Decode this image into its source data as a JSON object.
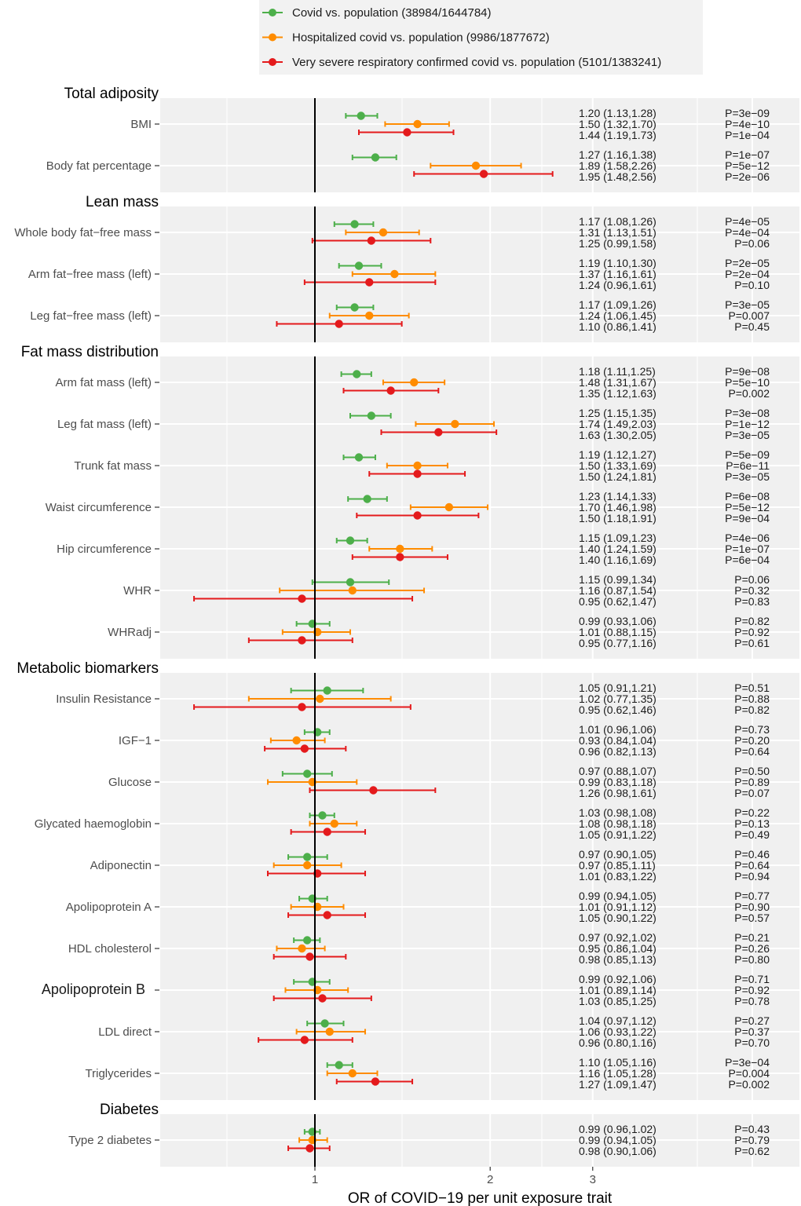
{
  "chart_data": {
    "type": "forest",
    "xlabel": "OR of COVID−19 per unit exposure trait",
    "xscale": "log",
    "xlim": [
      0.54,
      6.8
    ],
    "xticks": [
      1,
      2,
      3
    ],
    "reference_line": 1,
    "grid": true,
    "legend_position": "top",
    "series": [
      {
        "name": "Covid vs. population (38984/1644784)",
        "color": "#4daf4a"
      },
      {
        "name": "Hospitalized covid vs. population (9986/1877672)",
        "color": "#ff8c00"
      },
      {
        "name": "Very severe respiratory confirmed covid vs. population (5101/1383241)",
        "color": "#e41a1c"
      }
    ],
    "sections": [
      {
        "title": "Total adiposity",
        "traits": [
          {
            "name": "BMI",
            "est": [
              [
                1.2,
                1.13,
                1.28,
                "P=3e−09"
              ],
              [
                1.5,
                1.32,
                1.7,
                "P=4e−10"
              ],
              [
                1.44,
                1.19,
                1.73,
                "P=1e−04"
              ]
            ]
          },
          {
            "name": "Body fat percentage",
            "est": [
              [
                1.27,
                1.16,
                1.38,
                "P=1e−07"
              ],
              [
                1.89,
                1.58,
                2.26,
                "P=5e−12"
              ],
              [
                1.95,
                1.48,
                2.56,
                "P=2e−06"
              ]
            ]
          }
        ]
      },
      {
        "title": "Lean mass",
        "traits": [
          {
            "name": "Whole body fat−free mass",
            "est": [
              [
                1.17,
                1.08,
                1.26,
                "P=4e−05"
              ],
              [
                1.31,
                1.13,
                1.51,
                "P=4e−04"
              ],
              [
                1.25,
                0.99,
                1.58,
                "P=0.06"
              ]
            ]
          },
          {
            "name": "Arm fat−free mass (left)",
            "est": [
              [
                1.19,
                1.1,
                1.3,
                "P=2e−05"
              ],
              [
                1.37,
                1.16,
                1.61,
                "P=2e−04"
              ],
              [
                1.24,
                0.96,
                1.61,
                "P=0.10"
              ]
            ]
          },
          {
            "name": "Leg fat−free mass (left)",
            "est": [
              [
                1.17,
                1.09,
                1.26,
                "P=3e−05"
              ],
              [
                1.24,
                1.06,
                1.45,
                "P=0.007"
              ],
              [
                1.1,
                0.86,
                1.41,
                "P=0.45"
              ]
            ]
          }
        ]
      },
      {
        "title": "Fat mass distribution",
        "traits": [
          {
            "name": "Arm fat mass (left)",
            "est": [
              [
                1.18,
                1.11,
                1.25,
                "P=9e−08"
              ],
              [
                1.48,
                1.31,
                1.67,
                "P=5e−10"
              ],
              [
                1.35,
                1.12,
                1.63,
                "P=0.002"
              ]
            ]
          },
          {
            "name": "Leg fat mass (left)",
            "est": [
              [
                1.25,
                1.15,
                1.35,
                "P=3e−08"
              ],
              [
                1.74,
                1.49,
                2.03,
                "P=1e−12"
              ],
              [
                1.63,
                1.3,
                2.05,
                "P=3e−05"
              ]
            ]
          },
          {
            "name": "Trunk fat mass",
            "est": [
              [
                1.19,
                1.12,
                1.27,
                "P=5e−09"
              ],
              [
                1.5,
                1.33,
                1.69,
                "P=6e−11"
              ],
              [
                1.5,
                1.24,
                1.81,
                "P=3e−05"
              ]
            ]
          },
          {
            "name": "Waist circumference",
            "est": [
              [
                1.23,
                1.14,
                1.33,
                "P=6e−08"
              ],
              [
                1.7,
                1.46,
                1.98,
                "P=5e−12"
              ],
              [
                1.5,
                1.18,
                1.91,
                "P=9e−04"
              ]
            ]
          },
          {
            "name": "Hip circumference",
            "est": [
              [
                1.15,
                1.09,
                1.23,
                "P=4e−06"
              ],
              [
                1.4,
                1.24,
                1.59,
                "P=1e−07"
              ],
              [
                1.4,
                1.16,
                1.69,
                "P=6e−04"
              ]
            ]
          },
          {
            "name": "WHR",
            "est": [
              [
                1.15,
                0.99,
                1.34,
                "P=0.06"
              ],
              [
                1.16,
                0.87,
                1.54,
                "P=0.32"
              ],
              [
                0.95,
                0.62,
                1.47,
                "P=0.83"
              ]
            ]
          },
          {
            "name": "WHRadj",
            "est": [
              [
                0.99,
                0.93,
                1.06,
                "P=0.82"
              ],
              [
                1.01,
                0.88,
                1.15,
                "P=0.92"
              ],
              [
                0.95,
                0.77,
                1.16,
                "P=0.61"
              ]
            ]
          }
        ]
      },
      {
        "title": "Metabolic biomarkers",
        "traits": [
          {
            "name": "Insulin Resistance",
            "est": [
              [
                1.05,
                0.91,
                1.21,
                "P=0.51"
              ],
              [
                1.02,
                0.77,
                1.35,
                "P=0.88"
              ],
              [
                0.95,
                0.62,
                1.46,
                "P=0.82"
              ]
            ]
          },
          {
            "name": "IGF−1",
            "est": [
              [
                1.01,
                0.96,
                1.06,
                "P=0.73"
              ],
              [
                0.93,
                0.84,
                1.04,
                "P=0.20"
              ],
              [
                0.96,
                0.82,
                1.13,
                "P=0.64"
              ]
            ]
          },
          {
            "name": "Glucose",
            "est": [
              [
                0.97,
                0.88,
                1.07,
                "P=0.50"
              ],
              [
                0.99,
                0.83,
                1.18,
                "P=0.89"
              ],
              [
                1.26,
                0.98,
                1.61,
                "P=0.07"
              ]
            ]
          },
          {
            "name": "Glycated haemoglobin",
            "est": [
              [
                1.03,
                0.98,
                1.08,
                "P=0.22"
              ],
              [
                1.08,
                0.98,
                1.18,
                "P=0.13"
              ],
              [
                1.05,
                0.91,
                1.22,
                "P=0.49"
              ]
            ]
          },
          {
            "name": "Adiponectin",
            "est": [
              [
                0.97,
                0.9,
                1.05,
                "P=0.46"
              ],
              [
                0.97,
                0.85,
                1.11,
                "P=0.64"
              ],
              [
                1.01,
                0.83,
                1.22,
                "P=0.94"
              ]
            ]
          },
          {
            "name": "Apolipoprotein A",
            "est": [
              [
                0.99,
                0.94,
                1.05,
                "P=0.77"
              ],
              [
                1.01,
                0.91,
                1.12,
                "P=0.90"
              ],
              [
                1.05,
                0.9,
                1.22,
                "P=0.57"
              ]
            ]
          },
          {
            "name": "HDL cholesterol",
            "est": [
              [
                0.97,
                0.92,
                1.02,
                "P=0.21"
              ],
              [
                0.95,
                0.86,
                1.04,
                "P=0.26"
              ],
              [
                0.98,
                0.85,
                1.13,
                "P=0.80"
              ]
            ]
          },
          {
            "name": "Apolipoprotein B",
            "large": true,
            "est": [
              [
                0.99,
                0.92,
                1.06,
                "P=0.71"
              ],
              [
                1.01,
                0.89,
                1.14,
                "P=0.92"
              ],
              [
                1.03,
                0.85,
                1.25,
                "P=0.78"
              ]
            ]
          },
          {
            "name": "LDL direct",
            "est": [
              [
                1.04,
                0.97,
                1.12,
                "P=0.27"
              ],
              [
                1.06,
                0.93,
                1.22,
                "P=0.37"
              ],
              [
                0.96,
                0.8,
                1.16,
                "P=0.70"
              ]
            ]
          },
          {
            "name": "Triglycerides",
            "est": [
              [
                1.1,
                1.05,
                1.16,
                "P=3e−04"
              ],
              [
                1.16,
                1.05,
                1.28,
                "P=0.004"
              ],
              [
                1.27,
                1.09,
                1.47,
                "P=0.002"
              ]
            ]
          }
        ]
      },
      {
        "title": "Diabetes",
        "traits": [
          {
            "name": "Type 2 diabetes",
            "est": [
              [
                0.99,
                0.96,
                1.02,
                "P=0.43"
              ],
              [
                0.99,
                0.94,
                1.05,
                "P=0.79"
              ],
              [
                0.98,
                0.9,
                1.06,
                "P=0.62"
              ]
            ]
          }
        ]
      }
    ]
  }
}
